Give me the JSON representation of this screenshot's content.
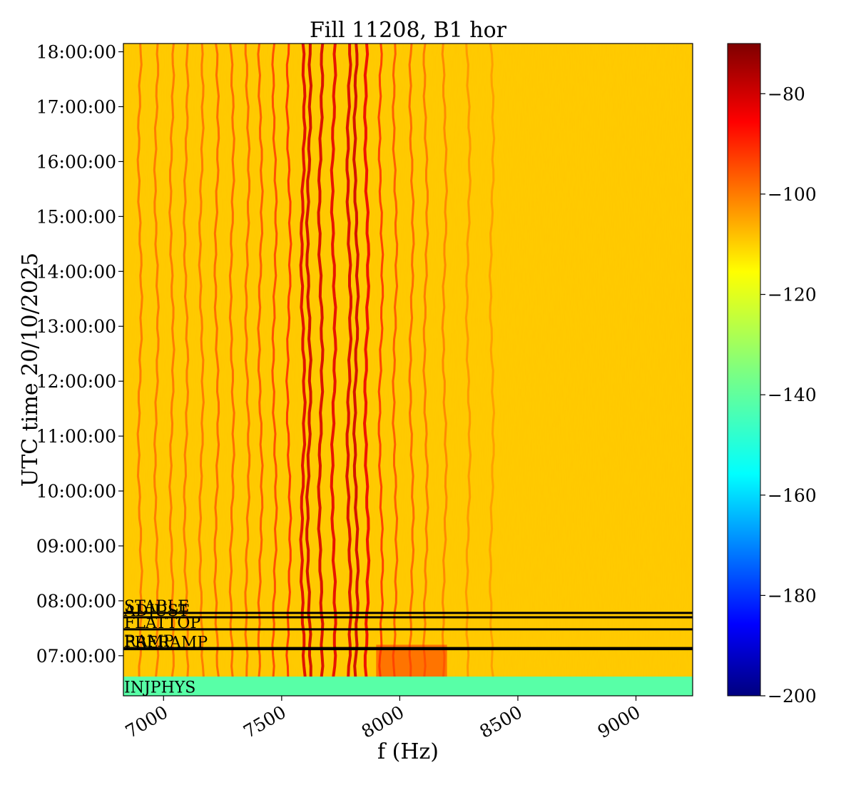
{
  "chart_data": {
    "type": "heatmap",
    "title": "Fill 11208, B1 hor",
    "xlabel": "f (Hz)",
    "ylabel": "UTC time 20/10/2025",
    "xlim": [
      6830,
      9240
    ],
    "ylim_hours": [
      6.27,
      18.15
    ],
    "x_ticks": [
      {
        "value": 7000,
        "label": "7000"
      },
      {
        "value": 7500,
        "label": "7500"
      },
      {
        "value": 8000,
        "label": "8000"
      },
      {
        "value": 8500,
        "label": "8500"
      },
      {
        "value": 9000,
        "label": "9000"
      }
    ],
    "y_ticks": [
      {
        "value": 7,
        "label": "07:00:00"
      },
      {
        "value": 8,
        "label": "08:00:00"
      },
      {
        "value": 9,
        "label": "09:00:00"
      },
      {
        "value": 10,
        "label": "10:00:00"
      },
      {
        "value": 11,
        "label": "11:00:00"
      },
      {
        "value": 12,
        "label": "12:00:00"
      },
      {
        "value": 13,
        "label": "13:00:00"
      },
      {
        "value": 14,
        "label": "14:00:00"
      },
      {
        "value": 15,
        "label": "15:00:00"
      },
      {
        "value": 16,
        "label": "16:00:00"
      },
      {
        "value": 17,
        "label": "17:00:00"
      },
      {
        "value": 18,
        "label": "18:00:00"
      }
    ],
    "colorbar": {
      "colormap": "jet",
      "vmin": -200,
      "vmax": -70,
      "ticks": [
        {
          "value": -80,
          "label": "−80"
        },
        {
          "value": -100,
          "label": "−100"
        },
        {
          "value": -120,
          "label": "−120"
        },
        {
          "value": -140,
          "label": "−140"
        },
        {
          "value": -160,
          "label": "−160"
        },
        {
          "value": -180,
          "label": "−180"
        },
        {
          "value": -200,
          "label": "−200"
        }
      ]
    },
    "background_level": -112,
    "injection_level": -140,
    "injection_end_hours": 6.62,
    "lines": [
      {
        "f": 7590,
        "level": -82
      },
      {
        "f": 7615,
        "level": -80
      },
      {
        "f": 7665,
        "level": -81
      },
      {
        "f": 7720,
        "level": -83
      },
      {
        "f": 7785,
        "level": -81
      },
      {
        "f": 7815,
        "level": -80
      },
      {
        "f": 7860,
        "level": -84
      },
      {
        "f": 7530,
        "level": -92
      },
      {
        "f": 7470,
        "level": -95
      },
      {
        "f": 7410,
        "level": -97
      },
      {
        "f": 7355,
        "level": -99
      },
      {
        "f": 7290,
        "level": -99
      },
      {
        "f": 7225,
        "level": -99
      },
      {
        "f": 7160,
        "level": -101
      },
      {
        "f": 7095,
        "level": -101
      },
      {
        "f": 7035,
        "level": -101
      },
      {
        "f": 6970,
        "level": -101
      },
      {
        "f": 6900,
        "level": -101
      },
      {
        "f": 7920,
        "level": -93
      },
      {
        "f": 7980,
        "level": -97
      },
      {
        "f": 8050,
        "level": -99
      },
      {
        "f": 8110,
        "level": -101
      },
      {
        "f": 8190,
        "level": -103
      },
      {
        "f": 8290,
        "level": -105
      },
      {
        "f": 8390,
        "level": -106
      }
    ],
    "phases": [
      {
        "name": "STABLE",
        "time_hours": 7.78
      },
      {
        "name": "ADJUST",
        "time_hours": 7.7
      },
      {
        "name": "FLATTOP",
        "time_hours": 7.48
      },
      {
        "name": "RAMP",
        "time_hours": 7.14
      },
      {
        "name": "PRERAMP",
        "time_hours": 7.12
      },
      {
        "name": "INJPHYS",
        "time_hours": 6.3
      }
    ]
  }
}
